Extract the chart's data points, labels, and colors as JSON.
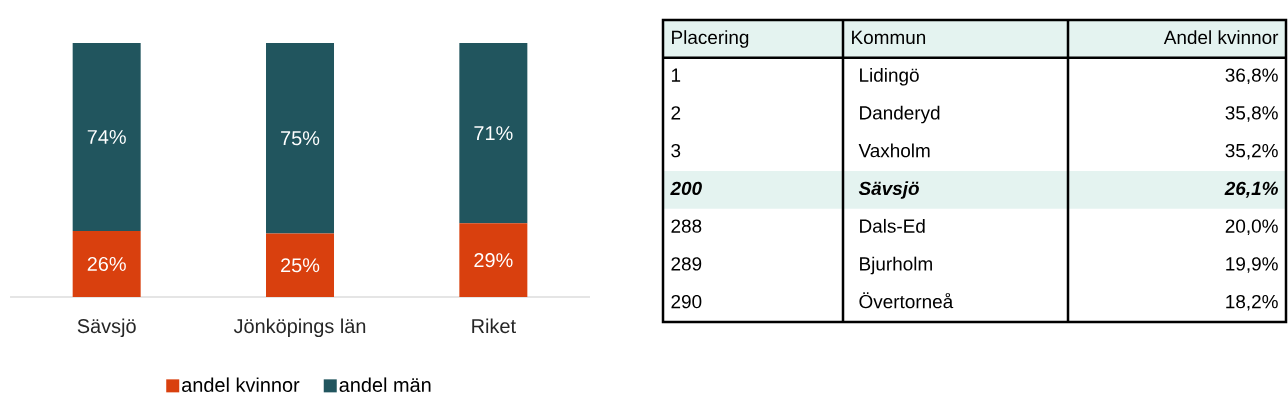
{
  "chart_data": [
    {
      "type": "bar",
      "stacked": true,
      "legend": "bottom",
      "categories": [
        "Sävsjö",
        "Jönköpings län",
        "Riket"
      ],
      "series": [
        {
          "name": "andel kvinnor",
          "color": "#d9400e",
          "values": [
            26,
            25,
            29
          ],
          "value_labels": [
            "26%",
            "25%",
            "29%"
          ]
        },
        {
          "name": "andel män",
          "color": "#21555e",
          "values": [
            74,
            75,
            71
          ],
          "value_labels": [
            "74%",
            "75%",
            "71%"
          ]
        }
      ]
    },
    {
      "type": "other",
      "annotations": [
        "Placering",
        "Kommun",
        "Andel kvinnor",
        "1",
        "Lidingö",
        "36,8%",
        "2",
        "Danderyd",
        "35,8%",
        "3",
        "Vaxholm",
        "35,2%",
        "200",
        "Sävsjö",
        "26,1%",
        "288",
        "Dals-Ed",
        "20,0%",
        "289",
        "Bjurholm",
        "19,9%",
        "290",
        "Övertorneå",
        "18,2%"
      ]
    }
  ]
}
